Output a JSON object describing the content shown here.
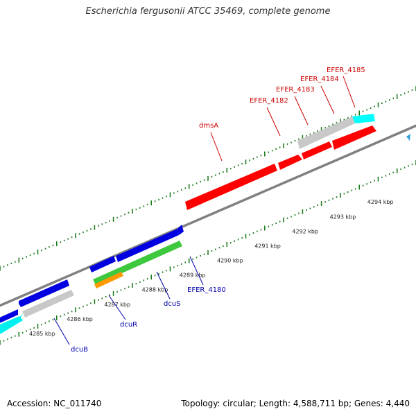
{
  "title": "Escherichia fergusonii ATCC 35469, complete genome",
  "footer": {
    "accession": "Accession: NC_011740",
    "summary": "Topology: circular; Length: 4,588,711 bp; Genes: 4,440"
  },
  "colors": {
    "backbone": "#808080",
    "forward_ticks": "#1e7d1e",
    "cds_red": "#ff0000",
    "cds_blue": "#0000e0",
    "cds_gray": "#c8c8c8",
    "cds_cyan": "#00ffff",
    "cds_green": "#3ec83e",
    "cds_orange": "#ff9900",
    "label_red": "#cc0000",
    "label_blue": "#0000aa",
    "marker": "#33a0e0"
  },
  "scale_labels": [
    "4285 kbp",
    "4286 kbp",
    "4287 kbp",
    "4288 kbp",
    "4289 kbp",
    "4290 kbp",
    "4291 kbp",
    "4292 kbp",
    "4293 kbp",
    "4294 kbp"
  ],
  "gene_labels": {
    "top": [
      "dmsA",
      "EFER_4182",
      "EFER_4183",
      "EFER_4184",
      "EFER_4185"
    ],
    "bottom": [
      "dcuB",
      "dcuR",
      "dcuS",
      "EFER_4180"
    ]
  }
}
